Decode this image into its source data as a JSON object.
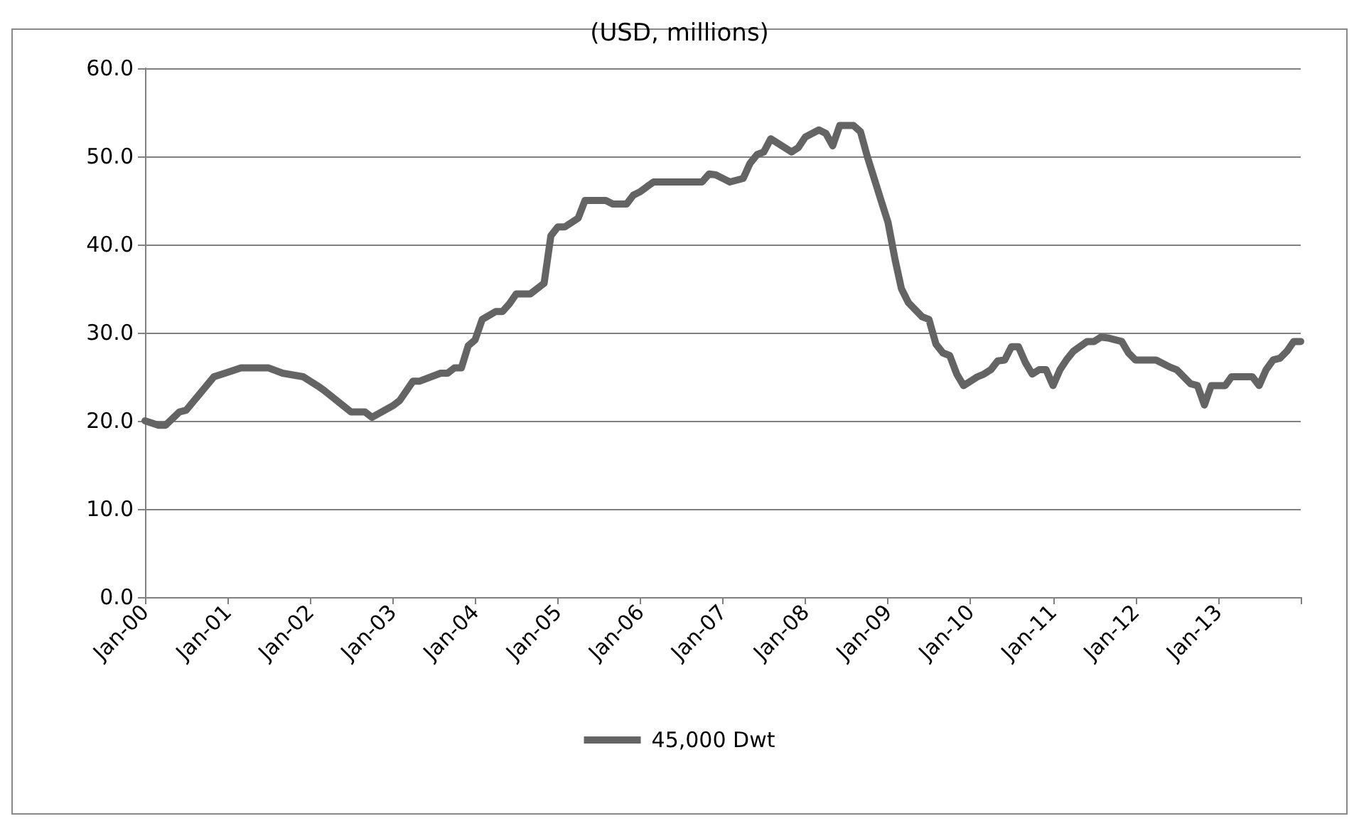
{
  "chart_data": {
    "type": "line",
    "title": "(USD, millions)",
    "legend": "bottom",
    "grid": "y",
    "marker": "none",
    "line_style": "solid",
    "xlim": [
      "2000-01",
      "2014-01"
    ],
    "xticks": [
      {
        "value": "2000-01",
        "label": "Jan-00"
      },
      {
        "value": "2001-01",
        "label": "Jan-01"
      },
      {
        "value": "2002-01",
        "label": "Jan-02"
      },
      {
        "value": "2003-01",
        "label": "Jan-03"
      },
      {
        "value": "2004-01",
        "label": "Jan-04"
      },
      {
        "value": "2005-01",
        "label": "Jan-05"
      },
      {
        "value": "2006-01",
        "label": "Jan-06"
      },
      {
        "value": "2007-01",
        "label": "Jan-07"
      },
      {
        "value": "2008-01",
        "label": "Jan-08"
      },
      {
        "value": "2009-01",
        "label": "Jan-09"
      },
      {
        "value": "2010-01",
        "label": "Jan-10"
      },
      {
        "value": "2011-01",
        "label": "Jan-11"
      },
      {
        "value": "2012-01",
        "label": "Jan-12"
      },
      {
        "value": "2013-01",
        "label": "Jan-13"
      },
      {
        "value": "2014-01",
        "label": null
      }
    ],
    "ylim": [
      0,
      60
    ],
    "yticks": [
      {
        "value": 0,
        "label": "0.0"
      },
      {
        "value": 10,
        "label": "10.0"
      },
      {
        "value": 20,
        "label": "20.0"
      },
      {
        "value": 30,
        "label": "30.0"
      },
      {
        "value": 40,
        "label": "40.0"
      },
      {
        "value": 50,
        "label": "50.0"
      },
      {
        "value": 60,
        "label": "60.0"
      }
    ],
    "x": [
      "2000-01",
      "2000-03",
      "2000-04",
      "2000-06",
      "2000-07",
      "2000-11",
      "2001-01",
      "2001-03",
      "2001-07",
      "2001-09",
      "2001-12",
      "2002-02",
      "2002-03",
      "2002-07",
      "2002-09",
      "2002-10",
      "2003-01",
      "2003-02",
      "2003-04",
      "2003-05",
      "2003-08",
      "2003-09",
      "2003-10",
      "2003-11",
      "2003-12",
      "2004-01",
      "2004-02",
      "2004-04",
      "2004-05",
      "2004-06",
      "2004-07",
      "2004-09",
      "2004-11",
      "2004-12",
      "2005-01",
      "2005-02",
      "2005-04",
      "2005-05",
      "2005-08",
      "2005-09",
      "2005-11",
      "2005-12",
      "2006-01",
      "2006-02",
      "2006-03",
      "2006-10",
      "2006-11",
      "2006-12",
      "2007-02",
      "2007-04",
      "2007-05",
      "2007-06",
      "2007-07",
      "2007-08",
      "2007-11",
      "2007-12",
      "2008-01",
      "2008-03",
      "2008-04",
      "2008-05",
      "2008-06",
      "2008-08",
      "2008-09",
      "2008-10",
      "2008-12",
      "2009-01",
      "2009-02",
      "2009-03",
      "2009-04",
      "2009-06",
      "2009-07",
      "2009-08",
      "2009-09",
      "2009-10",
      "2009-11",
      "2009-12",
      "2010-02",
      "2010-03",
      "2010-04",
      "2010-05",
      "2010-06",
      "2010-07",
      "2010-08",
      "2010-09",
      "2010-10",
      "2010-11",
      "2010-12",
      "2011-01",
      "2011-02",
      "2011-03",
      "2011-04",
      "2011-06",
      "2011-07",
      "2011-08",
      "2011-09",
      "2011-11",
      "2011-12",
      "2012-01",
      "2012-04",
      "2012-06",
      "2012-07",
      "2012-09",
      "2012-10",
      "2012-11",
      "2012-12",
      "2013-02",
      "2013-03",
      "2013-06",
      "2013-07",
      "2013-08",
      "2013-09",
      "2013-10",
      "2013-11",
      "2013-12",
      "2014-01"
    ],
    "series": [
      {
        "name": "45,000 Dwt",
        "color": "#646464",
        "values": [
          20,
          19.5,
          19.5,
          21,
          21.2,
          25,
          25.5,
          26,
          26,
          25.4,
          25,
          24,
          23.5,
          21,
          21,
          20.4,
          21.7,
          22.3,
          24.5,
          24.5,
          25.4,
          25.4,
          26,
          26,
          28.5,
          29.2,
          31.5,
          32.4,
          32.4,
          33.3,
          34.4,
          34.4,
          35.6,
          41,
          42,
          42,
          43,
          45,
          45,
          44.6,
          44.6,
          45.6,
          46,
          46.6,
          47.1,
          47.1,
          48,
          47.9,
          47.1,
          47.5,
          49.2,
          50.2,
          50.5,
          52,
          50.5,
          51,
          52.2,
          53,
          52.6,
          51.2,
          53.5,
          53.5,
          52.8,
          50,
          45,
          42.5,
          38.3,
          35,
          33.4,
          31.8,
          31.5,
          28.7,
          27.7,
          27.4,
          25.3,
          24,
          25,
          25.3,
          25.8,
          26.8,
          26.9,
          28.4,
          28.4,
          26.6,
          25.3,
          25.8,
          25.8,
          24,
          25.8,
          26.9,
          27.9,
          29,
          29,
          29.5,
          29.4,
          29,
          27.7,
          26.9,
          26.9,
          26.1,
          25.8,
          24.2,
          24,
          21.8,
          24,
          24,
          25,
          25,
          24,
          25.8,
          26.9,
          27.1,
          27.9,
          29,
          29
        ]
      }
    ]
  }
}
